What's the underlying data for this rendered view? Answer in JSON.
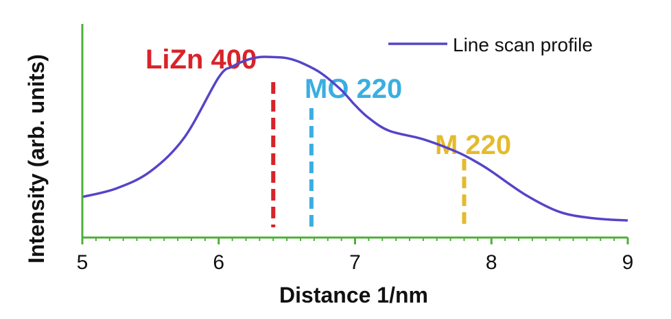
{
  "chart_data": {
    "type": "line",
    "xlabel": "Distance 1/nm",
    "ylabel": "Intensity (arb. units)",
    "xlim": [
      5,
      9
    ],
    "ylim": [
      0,
      1
    ],
    "x_ticks": [
      "5",
      "6",
      "7",
      "8",
      "9"
    ],
    "grid": false,
    "legend_position": "top-right",
    "series": [
      {
        "name": "Line scan profile",
        "color": "#5544c8",
        "x": [
          5.0,
          5.25,
          5.5,
          5.75,
          6.0,
          6.1,
          6.2,
          6.3,
          6.4,
          6.5,
          6.6,
          6.75,
          6.9,
          7.0,
          7.1,
          7.25,
          7.5,
          7.75,
          7.9,
          8.0,
          8.25,
          8.5,
          8.75,
          9.0
        ],
        "y": [
          0.19,
          0.23,
          0.31,
          0.47,
          0.75,
          0.8,
          0.83,
          0.845,
          0.845,
          0.84,
          0.82,
          0.77,
          0.69,
          0.62,
          0.56,
          0.5,
          0.46,
          0.4,
          0.35,
          0.31,
          0.2,
          0.12,
          0.09,
          0.08
        ]
      }
    ],
    "markers": [
      {
        "label": "LiZn 400",
        "x": 6.4,
        "color": "#d8232a"
      },
      {
        "label": "MO 220",
        "x": 6.68,
        "color": "#3aaee3"
      },
      {
        "label": "M 220",
        "x": 7.8,
        "color": "#e5bb2c"
      }
    ],
    "axis_color": "#4caf3a"
  }
}
